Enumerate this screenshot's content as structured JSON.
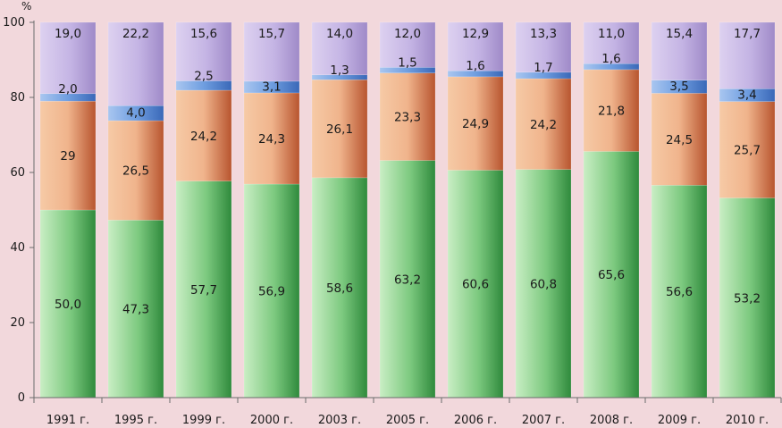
{
  "chart_data": {
    "type": "bar",
    "stacked": true,
    "ylabel": "%",
    "ylim": [
      0,
      100
    ],
    "yticks": [
      0,
      20,
      40,
      60,
      80,
      100
    ],
    "grid": false,
    "legend": "none",
    "categories": [
      "1991 г.",
      "1995 г.",
      "1999 г.",
      "2000 г.",
      "2003 г.",
      "2005 г.",
      "2006 г.",
      "2007 г.",
      "2008 г.",
      "2009 г.",
      "2010 г."
    ],
    "series": [
      {
        "color": "#3f9e4a",
        "values": [
          50.0,
          47.3,
          57.7,
          56.9,
          58.6,
          63.2,
          60.6,
          60.8,
          65.6,
          56.6,
          53.2
        ],
        "labels": [
          "50,0",
          "47,3",
          "57,7",
          "56,9",
          "58,6",
          "63,2",
          "60,6",
          "60,8",
          "65,6",
          "56,6",
          "53,2"
        ]
      },
      {
        "color": "#c0603a",
        "values": [
          29,
          26.5,
          24.2,
          24.3,
          26.1,
          23.3,
          24.9,
          24.2,
          21.8,
          24.5,
          25.7
        ],
        "labels": [
          "29",
          "26,5",
          "24,2",
          "24,3",
          "26,1",
          "23,3",
          "24,9",
          "24,2",
          "21,8",
          "24,5",
          "25,7"
        ]
      },
      {
        "color": "#4f7fcc",
        "values": [
          2.0,
          4.0,
          2.5,
          3.1,
          1.3,
          1.5,
          1.6,
          1.7,
          1.6,
          3.5,
          3.4
        ],
        "labels": [
          "2,0",
          "4,0",
          "2,5",
          "3,1",
          "1,3",
          "1,5",
          "1,6",
          "1,7",
          "1,6",
          "3,5",
          "3,4"
        ]
      },
      {
        "color": "#b9a6d8",
        "values": [
          19.0,
          22.2,
          15.6,
          15.7,
          14.0,
          12.0,
          12.9,
          13.3,
          11.0,
          15.4,
          17.7
        ],
        "labels": [
          "19,0",
          "22,2",
          "15,6",
          "15,7",
          "14,0",
          "12,0",
          "12,9",
          "13,3",
          "11,0",
          "15,4",
          "17,7"
        ]
      }
    ]
  }
}
